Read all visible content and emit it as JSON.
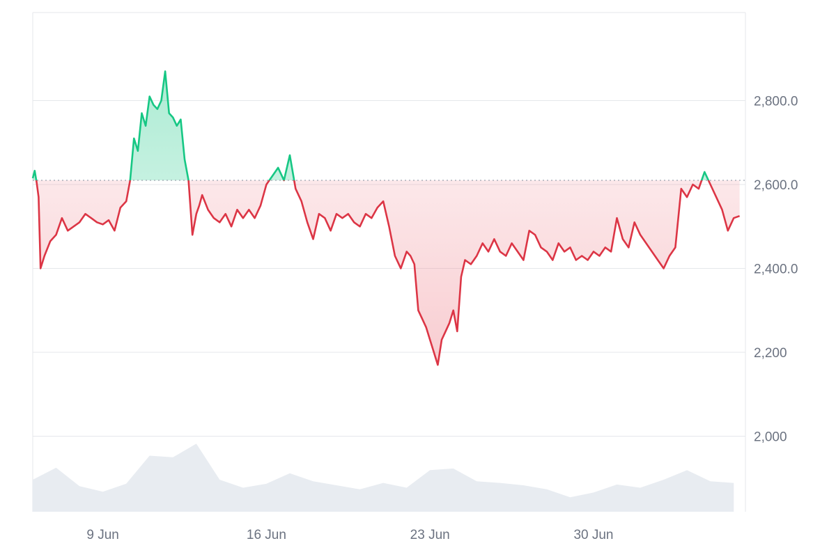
{
  "colors": {
    "up": "#16c784",
    "down": "#dc3545",
    "up_fill": "#16c784",
    "down_fill": "#f08f98",
    "grid": "#e5e7eb",
    "frame": "#e5e7eb",
    "baseline_dotted": "#9ca3af",
    "volume": "#e8ecf1",
    "tick_text": "#6b7280"
  },
  "chart_data": {
    "type": "line",
    "title": "",
    "xlabel": "",
    "ylabel": "",
    "baseline": 2610,
    "ylim": [
      1820,
      3010
    ],
    "xlim": [
      "2025-06-06",
      "2025-07-06T12:00"
    ],
    "y_ticks": [
      {
        "value": 2000,
        "label": "2,000"
      },
      {
        "value": 2200,
        "label": "2,200"
      },
      {
        "value": 2400,
        "label": "2,400.0"
      },
      {
        "value": 2600,
        "label": "2,600.0"
      },
      {
        "value": 2800,
        "label": "2,800.0"
      }
    ],
    "x_ticks": [
      {
        "value": "2025-06-09",
        "label": "9 Jun"
      },
      {
        "value": "2025-06-16",
        "label": "16 Jun"
      },
      {
        "value": "2025-06-23",
        "label": "23 Jun"
      },
      {
        "value": "2025-06-30",
        "label": "30 Jun"
      }
    ],
    "grid": true,
    "legend": "none",
    "series": [
      {
        "x": [
          "2025-06-06",
          "2025-06-06T02:00",
          "2025-06-06T04:00",
          "2025-06-06T06:00",
          "2025-06-06T08:00",
          "2025-06-06T12:00",
          "2025-06-06T18:00",
          "2025-06-07",
          "2025-06-07T06:00",
          "2025-06-07T12:00",
          "2025-06-07T18:00",
          "2025-06-08",
          "2025-06-08T06:00",
          "2025-06-08T12:00",
          "2025-06-08T18:00",
          "2025-06-09",
          "2025-06-09T06:00",
          "2025-06-09T12:00",
          "2025-06-09T18:00",
          "2025-06-10",
          "2025-06-10T04:00",
          "2025-06-10T08:00",
          "2025-06-10T12:00",
          "2025-06-10T16:00",
          "2025-06-10T20:00",
          "2025-06-11",
          "2025-06-11T04:00",
          "2025-06-11T08:00",
          "2025-06-11T12:00",
          "2025-06-11T16:00",
          "2025-06-11T20:00",
          "2025-06-12",
          "2025-06-12T04:00",
          "2025-06-12T08:00",
          "2025-06-12T12:00",
          "2025-06-12T16:00",
          "2025-06-12T20:00",
          "2025-06-13",
          "2025-06-13T03:00",
          "2025-06-13T06:00",
          "2025-06-13T12:00",
          "2025-06-13T18:00",
          "2025-06-14",
          "2025-06-14T06:00",
          "2025-06-14T12:00",
          "2025-06-14T18:00",
          "2025-06-15",
          "2025-06-15T06:00",
          "2025-06-15T12:00",
          "2025-06-15T18:00",
          "2025-06-16",
          "2025-06-16T06:00",
          "2025-06-16T12:00",
          "2025-06-16T18:00",
          "2025-06-17",
          "2025-06-17T06:00",
          "2025-06-17T12:00",
          "2025-06-17T18:00",
          "2025-06-18",
          "2025-06-18T06:00",
          "2025-06-18T12:00",
          "2025-06-18T18:00",
          "2025-06-19",
          "2025-06-19T06:00",
          "2025-06-19T12:00",
          "2025-06-19T18:00",
          "2025-06-20",
          "2025-06-20T06:00",
          "2025-06-20T12:00",
          "2025-06-20T18:00",
          "2025-06-21",
          "2025-06-21T06:00",
          "2025-06-21T12:00",
          "2025-06-21T18:00",
          "2025-06-22",
          "2025-06-22T04:00",
          "2025-06-22T08:00",
          "2025-06-22T12:00",
          "2025-06-22T16:00",
          "2025-06-22T20:00",
          "2025-06-23",
          "2025-06-23T04:00",
          "2025-06-23T08:00",
          "2025-06-23T12:00",
          "2025-06-23T16:00",
          "2025-06-23T20:00",
          "2025-06-24",
          "2025-06-24T04:00",
          "2025-06-24T08:00",
          "2025-06-24T12:00",
          "2025-06-24T18:00",
          "2025-06-25",
          "2025-06-25T06:00",
          "2025-06-25T12:00",
          "2025-06-25T18:00",
          "2025-06-26",
          "2025-06-26T06:00",
          "2025-06-26T12:00",
          "2025-06-26T18:00",
          "2025-06-27",
          "2025-06-27T06:00",
          "2025-06-27T12:00",
          "2025-06-27T18:00",
          "2025-06-28",
          "2025-06-28T06:00",
          "2025-06-28T12:00",
          "2025-06-28T18:00",
          "2025-06-29",
          "2025-06-29T06:00",
          "2025-06-29T12:00",
          "2025-06-29T18:00",
          "2025-06-30",
          "2025-06-30T06:00",
          "2025-06-30T12:00",
          "2025-06-30T18:00",
          "2025-07-01",
          "2025-07-01T06:00",
          "2025-07-01T12:00",
          "2025-07-01T18:00",
          "2025-07-02",
          "2025-07-02T06:00",
          "2025-07-02T12:00",
          "2025-07-02T18:00",
          "2025-07-03",
          "2025-07-03T06:00",
          "2025-07-03T12:00",
          "2025-07-03T18:00",
          "2025-07-04",
          "2025-07-04T06:00",
          "2025-07-04T12:00",
          "2025-07-04T18:00",
          "2025-07-05",
          "2025-07-05T06:00",
          "2025-07-05T12:00",
          "2025-07-05T18:00",
          "2025-07-06",
          "2025-07-06T06:00"
        ],
        "values": [
          2615,
          2633,
          2605,
          2570,
          2400,
          2430,
          2465,
          2480,
          2520,
          2490,
          2500,
          2510,
          2530,
          2520,
          2510,
          2505,
          2515,
          2490,
          2545,
          2560,
          2610,
          2710,
          2680,
          2770,
          2740,
          2810,
          2790,
          2780,
          2800,
          2870,
          2770,
          2760,
          2740,
          2755,
          2660,
          2610,
          2480,
          2530,
          2550,
          2575,
          2540,
          2520,
          2510,
          2530,
          2500,
          2540,
          2520,
          2540,
          2520,
          2550,
          2600,
          2620,
          2640,
          2610,
          2670,
          2590,
          2560,
          2510,
          2470,
          2530,
          2520,
          2490,
          2530,
          2520,
          2530,
          2510,
          2500,
          2530,
          2520,
          2545,
          2560,
          2500,
          2430,
          2400,
          2440,
          2430,
          2410,
          2300,
          2280,
          2260,
          2230,
          2200,
          2170,
          2230,
          2250,
          2270,
          2300,
          2250,
          2380,
          2420,
          2410,
          2430,
          2460,
          2440,
          2470,
          2440,
          2430,
          2460,
          2440,
          2420,
          2490,
          2480,
          2450,
          2440,
          2420,
          2460,
          2440,
          2450,
          2420,
          2430,
          2420,
          2440,
          2430,
          2450,
          2440,
          2520,
          2470,
          2450,
          2510,
          2480,
          2460,
          2440,
          2420,
          2400,
          2430,
          2450,
          2590,
          2570,
          2600,
          2590,
          2630,
          2600,
          2570,
          2540,
          2490,
          2520,
          2525
        ]
      }
    ],
    "volume_series": {
      "x": [
        "2025-06-06",
        "2025-06-07",
        "2025-06-08",
        "2025-06-09",
        "2025-06-10",
        "2025-06-11",
        "2025-06-12",
        "2025-06-13",
        "2025-06-14",
        "2025-06-15",
        "2025-06-16",
        "2025-06-17",
        "2025-06-18",
        "2025-06-19",
        "2025-06-20",
        "2025-06-21",
        "2025-06-22",
        "2025-06-23",
        "2025-06-24",
        "2025-06-25",
        "2025-06-26",
        "2025-06-27",
        "2025-06-28",
        "2025-06-29",
        "2025-06-30",
        "2025-07-01",
        "2025-07-02",
        "2025-07-03",
        "2025-07-04",
        "2025-07-05",
        "2025-07-06"
      ],
      "values": [
        40,
        55,
        32,
        25,
        35,
        70,
        68,
        85,
        40,
        30,
        35,
        48,
        38,
        33,
        28,
        36,
        30,
        52,
        54,
        38,
        36,
        33,
        28,
        18,
        24,
        34,
        30,
        40,
        52,
        38,
        36
      ]
    }
  }
}
